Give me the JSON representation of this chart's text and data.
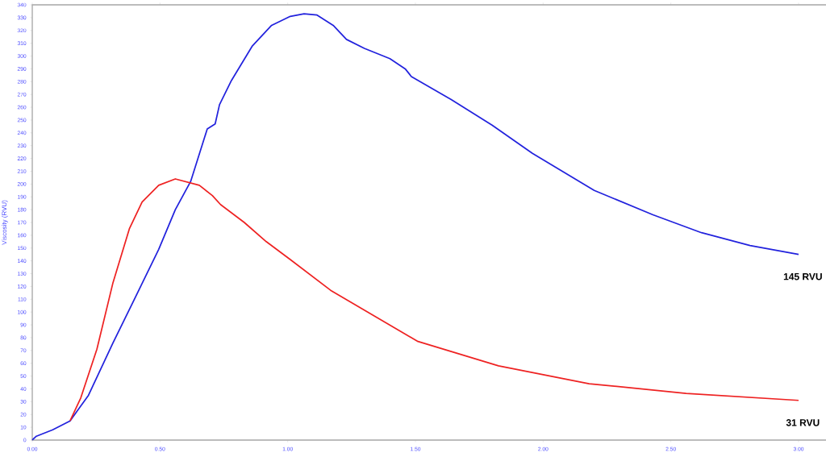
{
  "chart_data": {
    "type": "line",
    "ylabel": "Viscosity (RVU)",
    "series": [
      {
        "color": "#2222dd",
        "x": [
          0,
          0.016,
          0.08,
          0.148,
          0.22,
          0.316,
          0.39,
          0.495,
          0.56,
          0.62,
          0.685,
          0.716,
          0.733,
          0.78,
          0.862,
          0.937,
          1.01,
          1.064,
          1.115,
          1.178,
          1.23,
          1.3,
          1.4,
          1.46,
          1.484,
          1.64,
          1.8,
          1.958,
          2.2,
          2.43,
          2.62,
          2.81,
          3.0
        ],
        "values": [
          0,
          3,
          8,
          15,
          35,
          76,
          106,
          149,
          180,
          202,
          243,
          247,
          262,
          281,
          308,
          324,
          331,
          333,
          332,
          324,
          313,
          306,
          298,
          290,
          284,
          266,
          246,
          224,
          195,
          176,
          162,
          152,
          145
        ]
      },
      {
        "color": "#ee2222",
        "x": [
          0.148,
          0.19,
          0.253,
          0.316,
          0.38,
          0.43,
          0.495,
          0.56,
          0.654,
          0.705,
          0.737,
          0.83,
          0.916,
          1.01,
          1.168,
          1.51,
          1.825,
          2.18,
          2.56,
          3.0
        ],
        "values": [
          15,
          33,
          71,
          123,
          165,
          186,
          199,
          204,
          199,
          191,
          184,
          170,
          155,
          141,
          117,
          77,
          58,
          44,
          36.5,
          31
        ]
      }
    ],
    "xlim": [
      0,
      3.12
    ],
    "xticks": [
      {
        "value": 0,
        "label": "0.00"
      },
      {
        "value": 0.5,
        "label": "0.50"
      },
      {
        "value": 1,
        "label": "1.00"
      },
      {
        "value": 1.5,
        "label": "1.50"
      },
      {
        "value": 2,
        "label": "2.00"
      },
      {
        "value": 2.5,
        "label": "2.50"
      },
      {
        "value": 3,
        "label": "3.00"
      }
    ],
    "ylim": [
      0,
      340
    ],
    "yticks": [
      0,
      10,
      20,
      30,
      40,
      50,
      60,
      70,
      80,
      90,
      100,
      110,
      120,
      130,
      140,
      150,
      160,
      170,
      180,
      190,
      200,
      210,
      220,
      230,
      240,
      250,
      260,
      270,
      280,
      290,
      300,
      310,
      320,
      330,
      340
    ],
    "annotations": [
      {
        "text": "145 RVU",
        "x": 3.0,
        "y": 145
      },
      {
        "text": "31 RVU",
        "x": 3.0,
        "y": 31
      }
    ],
    "marker": "none",
    "line_style": "solid"
  }
}
